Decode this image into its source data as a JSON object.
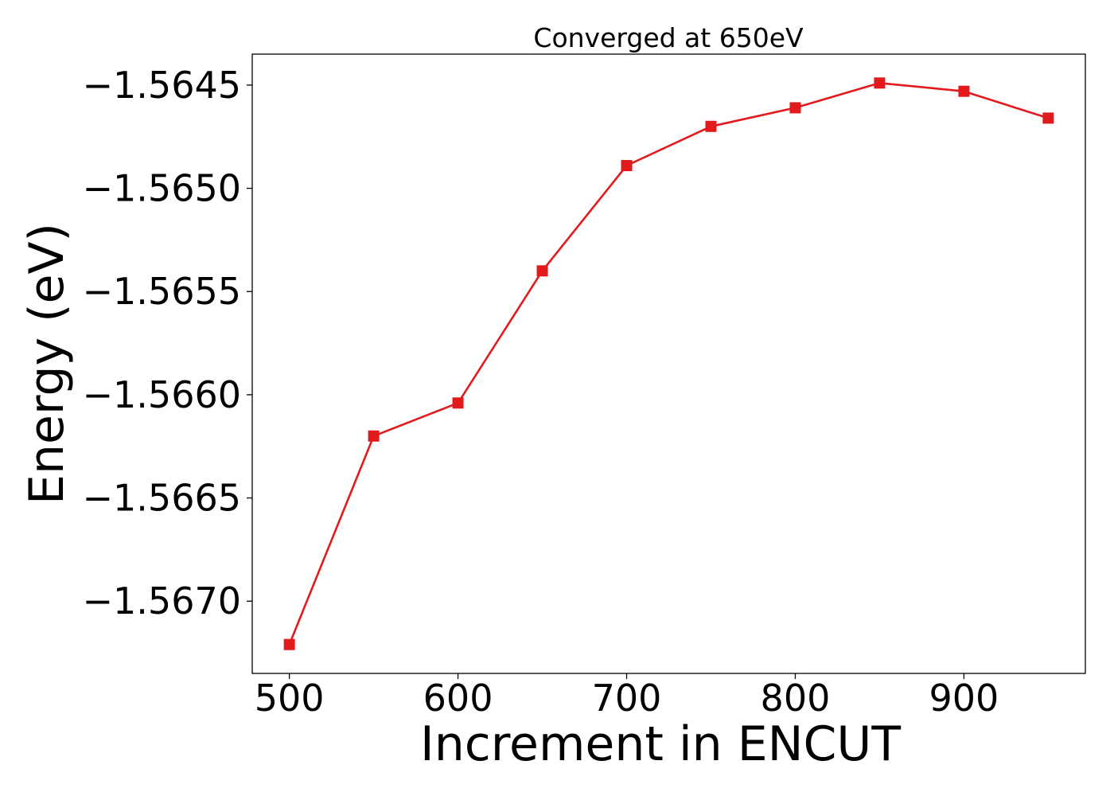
{
  "chart_data": {
    "type": "line",
    "title": "Converged at 650eV",
    "xlabel": "Increment in ENCUT",
    "ylabel": "Energy (eV)",
    "xlim": [
      478,
      972
    ],
    "ylim": [
      -1.56735,
      -1.56435
    ],
    "xticks": [
      500,
      600,
      700,
      800,
      900
    ],
    "yticks": [
      -1.5645,
      -1.565,
      -1.5655,
      -1.566,
      -1.5665,
      -1.567
    ],
    "ytick_labels": [
      "−1.5645",
      "−1.5650",
      "−1.5655",
      "−1.5660",
      "−1.5665",
      "−1.5670"
    ],
    "grid": false,
    "legend": false,
    "marker": "square",
    "color": "#e31a1c",
    "x": [
      500,
      550,
      600,
      650,
      700,
      750,
      800,
      850,
      900,
      950
    ],
    "y": [
      -1.56721,
      -1.5662,
      -1.56604,
      -1.5654,
      -1.56489,
      -1.5647,
      -1.56461,
      -1.56449,
      -1.56453,
      -1.56466
    ]
  }
}
